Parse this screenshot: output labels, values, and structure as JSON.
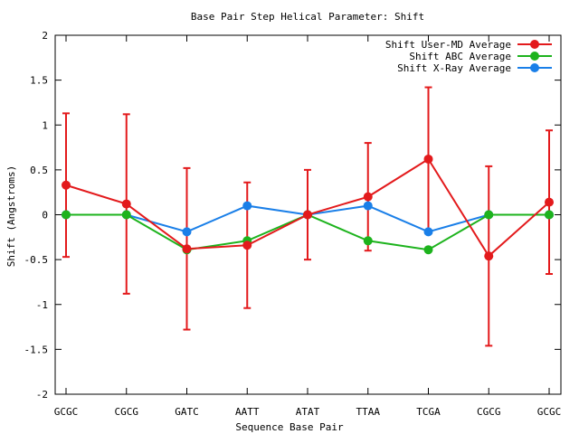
{
  "chart_data": {
    "type": "line",
    "title": "Base Pair Step Helical Parameter: Shift",
    "xlabel": "Sequence Base Pair",
    "ylabel": "Shift (Angstroms)",
    "categories": [
      "GCGC",
      "CGCG",
      "GATC",
      "AATT",
      "ATAT",
      "TTAA",
      "TCGA",
      "CGCG",
      "GCGC"
    ],
    "ylim": [
      -2,
      2
    ],
    "yticks": [
      "2",
      "1.5",
      "1",
      "0.5",
      "0",
      "-0.5",
      "-1",
      "-1.5",
      "-2"
    ],
    "ytick_values": [
      2,
      1.5,
      1,
      0.5,
      0,
      -0.5,
      -1,
      -1.5,
      -2
    ],
    "legend_position": "top-right",
    "grid": false,
    "series": [
      {
        "name": "Shift User-MD Average",
        "color": "#e31a1c",
        "values": [
          0.33,
          0.12,
          -0.38,
          -0.34,
          0.0,
          0.2,
          0.62,
          -0.46,
          0.14
        ],
        "errors": [
          0.8,
          1.0,
          0.9,
          0.7,
          0.5,
          0.6,
          0.8,
          1.0,
          0.8
        ]
      },
      {
        "name": "Shift ABC Average",
        "color": "#1db31d",
        "values": [
          0.0,
          0.0,
          -0.39,
          -0.29,
          0.0,
          -0.29,
          -0.39,
          0.0,
          0.0
        ]
      },
      {
        "name": "Shift X-Ray Average",
        "color": "#1a7fe8",
        "values": [
          0.0,
          0.0,
          -0.19,
          0.1,
          0.0,
          0.1,
          -0.19,
          0.0,
          0.0
        ]
      }
    ]
  }
}
